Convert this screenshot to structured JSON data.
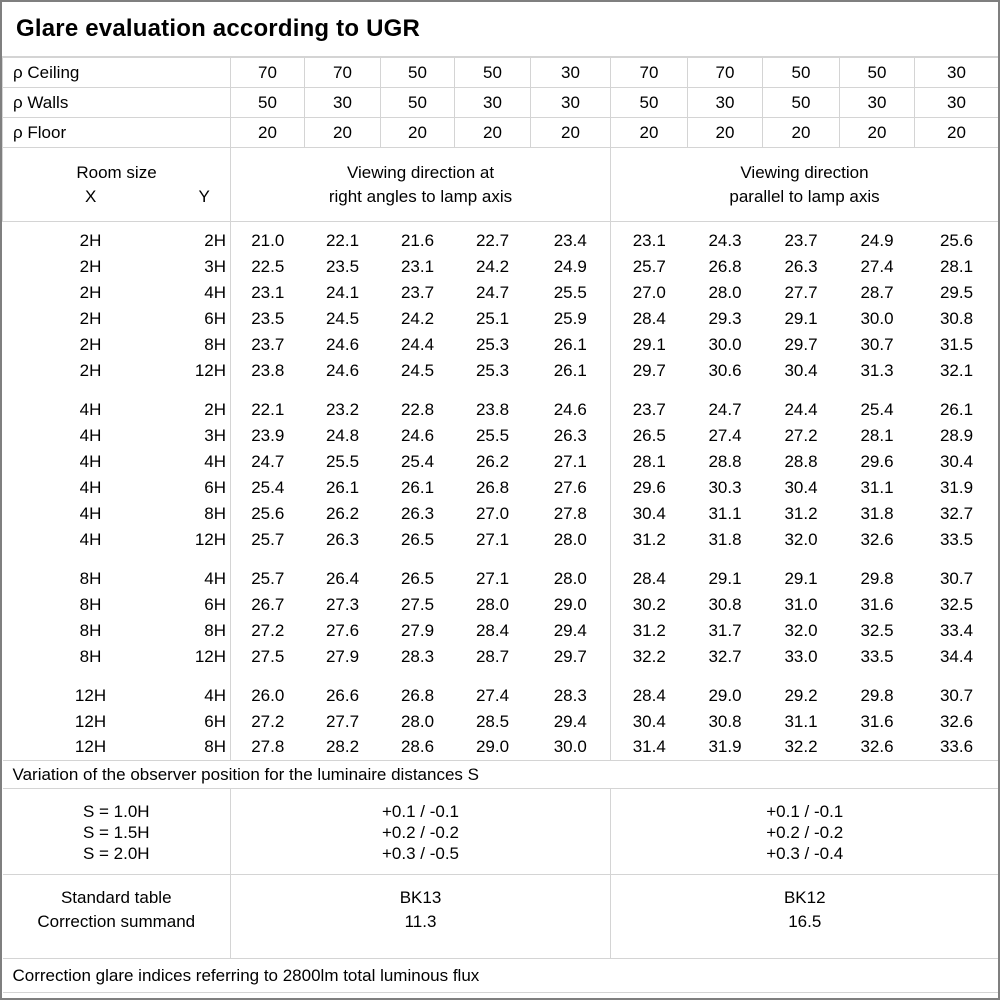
{
  "title": "Glare evaluation according to UGR",
  "colors": {
    "outer_border": "#7f7f7f",
    "grid_line": "#d4d4d4",
    "text": "#000000",
    "background": "#ffffff"
  },
  "reflectance_rows": [
    {
      "label": "ρ Ceiling",
      "values": [
        "70",
        "70",
        "50",
        "50",
        "30",
        "70",
        "70",
        "50",
        "50",
        "30"
      ]
    },
    {
      "label": "ρ Walls",
      "values": [
        "50",
        "30",
        "50",
        "30",
        "30",
        "50",
        "30",
        "50",
        "30",
        "30"
      ]
    },
    {
      "label": "ρ Floor",
      "values": [
        "20",
        "20",
        "20",
        "20",
        "20",
        "20",
        "20",
        "20",
        "20",
        "20"
      ]
    }
  ],
  "room_header": {
    "title": "Room size",
    "x_label": "X",
    "y_label": "Y"
  },
  "group_headers": {
    "left": [
      "Viewing direction at",
      "right angles to lamp axis"
    ],
    "right": [
      "Viewing direction",
      "parallel to lamp axis"
    ]
  },
  "ugr_blocks": [
    {
      "rows": [
        {
          "x": "2H",
          "y": "2H",
          "values": [
            "21.0",
            "22.1",
            "21.6",
            "22.7",
            "23.4",
            "23.1",
            "24.3",
            "23.7",
            "24.9",
            "25.6"
          ]
        },
        {
          "x": "2H",
          "y": "3H",
          "values": [
            "22.5",
            "23.5",
            "23.1",
            "24.2",
            "24.9",
            "25.7",
            "26.8",
            "26.3",
            "27.4",
            "28.1"
          ]
        },
        {
          "x": "2H",
          "y": "4H",
          "values": [
            "23.1",
            "24.1",
            "23.7",
            "24.7",
            "25.5",
            "27.0",
            "28.0",
            "27.7",
            "28.7",
            "29.5"
          ]
        },
        {
          "x": "2H",
          "y": "6H",
          "values": [
            "23.5",
            "24.5",
            "24.2",
            "25.1",
            "25.9",
            "28.4",
            "29.3",
            "29.1",
            "30.0",
            "30.8"
          ]
        },
        {
          "x": "2H",
          "y": "8H",
          "values": [
            "23.7",
            "24.6",
            "24.4",
            "25.3",
            "26.1",
            "29.1",
            "30.0",
            "29.7",
            "30.7",
            "31.5"
          ]
        },
        {
          "x": "2H",
          "y": "12H",
          "values": [
            "23.8",
            "24.6",
            "24.5",
            "25.3",
            "26.1",
            "29.7",
            "30.6",
            "30.4",
            "31.3",
            "32.1"
          ]
        }
      ]
    },
    {
      "rows": [
        {
          "x": "4H",
          "y": "2H",
          "values": [
            "22.1",
            "23.2",
            "22.8",
            "23.8",
            "24.6",
            "23.7",
            "24.7",
            "24.4",
            "25.4",
            "26.1"
          ]
        },
        {
          "x": "4H",
          "y": "3H",
          "values": [
            "23.9",
            "24.8",
            "24.6",
            "25.5",
            "26.3",
            "26.5",
            "27.4",
            "27.2",
            "28.1",
            "28.9"
          ]
        },
        {
          "x": "4H",
          "y": "4H",
          "values": [
            "24.7",
            "25.5",
            "25.4",
            "26.2",
            "27.1",
            "28.1",
            "28.8",
            "28.8",
            "29.6",
            "30.4"
          ]
        },
        {
          "x": "4H",
          "y": "6H",
          "values": [
            "25.4",
            "26.1",
            "26.1",
            "26.8",
            "27.6",
            "29.6",
            "30.3",
            "30.4",
            "31.1",
            "31.9"
          ]
        },
        {
          "x": "4H",
          "y": "8H",
          "values": [
            "25.6",
            "26.2",
            "26.3",
            "27.0",
            "27.8",
            "30.4",
            "31.1",
            "31.2",
            "31.8",
            "32.7"
          ]
        },
        {
          "x": "4H",
          "y": "12H",
          "values": [
            "25.7",
            "26.3",
            "26.5",
            "27.1",
            "28.0",
            "31.2",
            "31.8",
            "32.0",
            "32.6",
            "33.5"
          ]
        }
      ]
    },
    {
      "rows": [
        {
          "x": "8H",
          "y": "4H",
          "values": [
            "25.7",
            "26.4",
            "26.5",
            "27.1",
            "28.0",
            "28.4",
            "29.1",
            "29.1",
            "29.8",
            "30.7"
          ]
        },
        {
          "x": "8H",
          "y": "6H",
          "values": [
            "26.7",
            "27.3",
            "27.5",
            "28.0",
            "29.0",
            "30.2",
            "30.8",
            "31.0",
            "31.6",
            "32.5"
          ]
        },
        {
          "x": "8H",
          "y": "8H",
          "values": [
            "27.2",
            "27.6",
            "27.9",
            "28.4",
            "29.4",
            "31.2",
            "31.7",
            "32.0",
            "32.5",
            "33.4"
          ]
        },
        {
          "x": "8H",
          "y": "12H",
          "values": [
            "27.5",
            "27.9",
            "28.3",
            "28.7",
            "29.7",
            "32.2",
            "32.7",
            "33.0",
            "33.5",
            "34.4"
          ]
        }
      ]
    },
    {
      "rows": [
        {
          "x": "12H",
          "y": "4H",
          "values": [
            "26.0",
            "26.6",
            "26.8",
            "27.4",
            "28.3",
            "28.4",
            "29.0",
            "29.2",
            "29.8",
            "30.7"
          ]
        },
        {
          "x": "12H",
          "y": "6H",
          "values": [
            "27.2",
            "27.7",
            "28.0",
            "28.5",
            "29.4",
            "30.4",
            "30.8",
            "31.1",
            "31.6",
            "32.6"
          ]
        },
        {
          "x": "12H",
          "y": "8H",
          "values": [
            "27.8",
            "28.2",
            "28.6",
            "29.0",
            "30.0",
            "31.4",
            "31.9",
            "32.2",
            "32.6",
            "33.6"
          ]
        }
      ]
    }
  ],
  "variation_note": "Variation of the observer position for the luminaire distances S",
  "spacing_block": {
    "labels": [
      "S = 1.0H",
      "S = 1.5H",
      "S = 2.0H"
    ],
    "left_values": [
      "+0.1 / -0.1",
      "+0.2 / -0.2",
      "+0.3 / -0.5"
    ],
    "right_values": [
      "+0.1 / -0.1",
      "+0.2 / -0.2",
      "+0.3 / -0.4"
    ]
  },
  "summary": {
    "standard_table_label": "Standard table",
    "correction_summand_label": "Correction summand",
    "left_table": "BK13",
    "left_summand": "11.3",
    "right_table": "BK12",
    "right_summand": "16.5"
  },
  "footer_note": "Correction glare indices referring to 2800lm total luminous flux"
}
